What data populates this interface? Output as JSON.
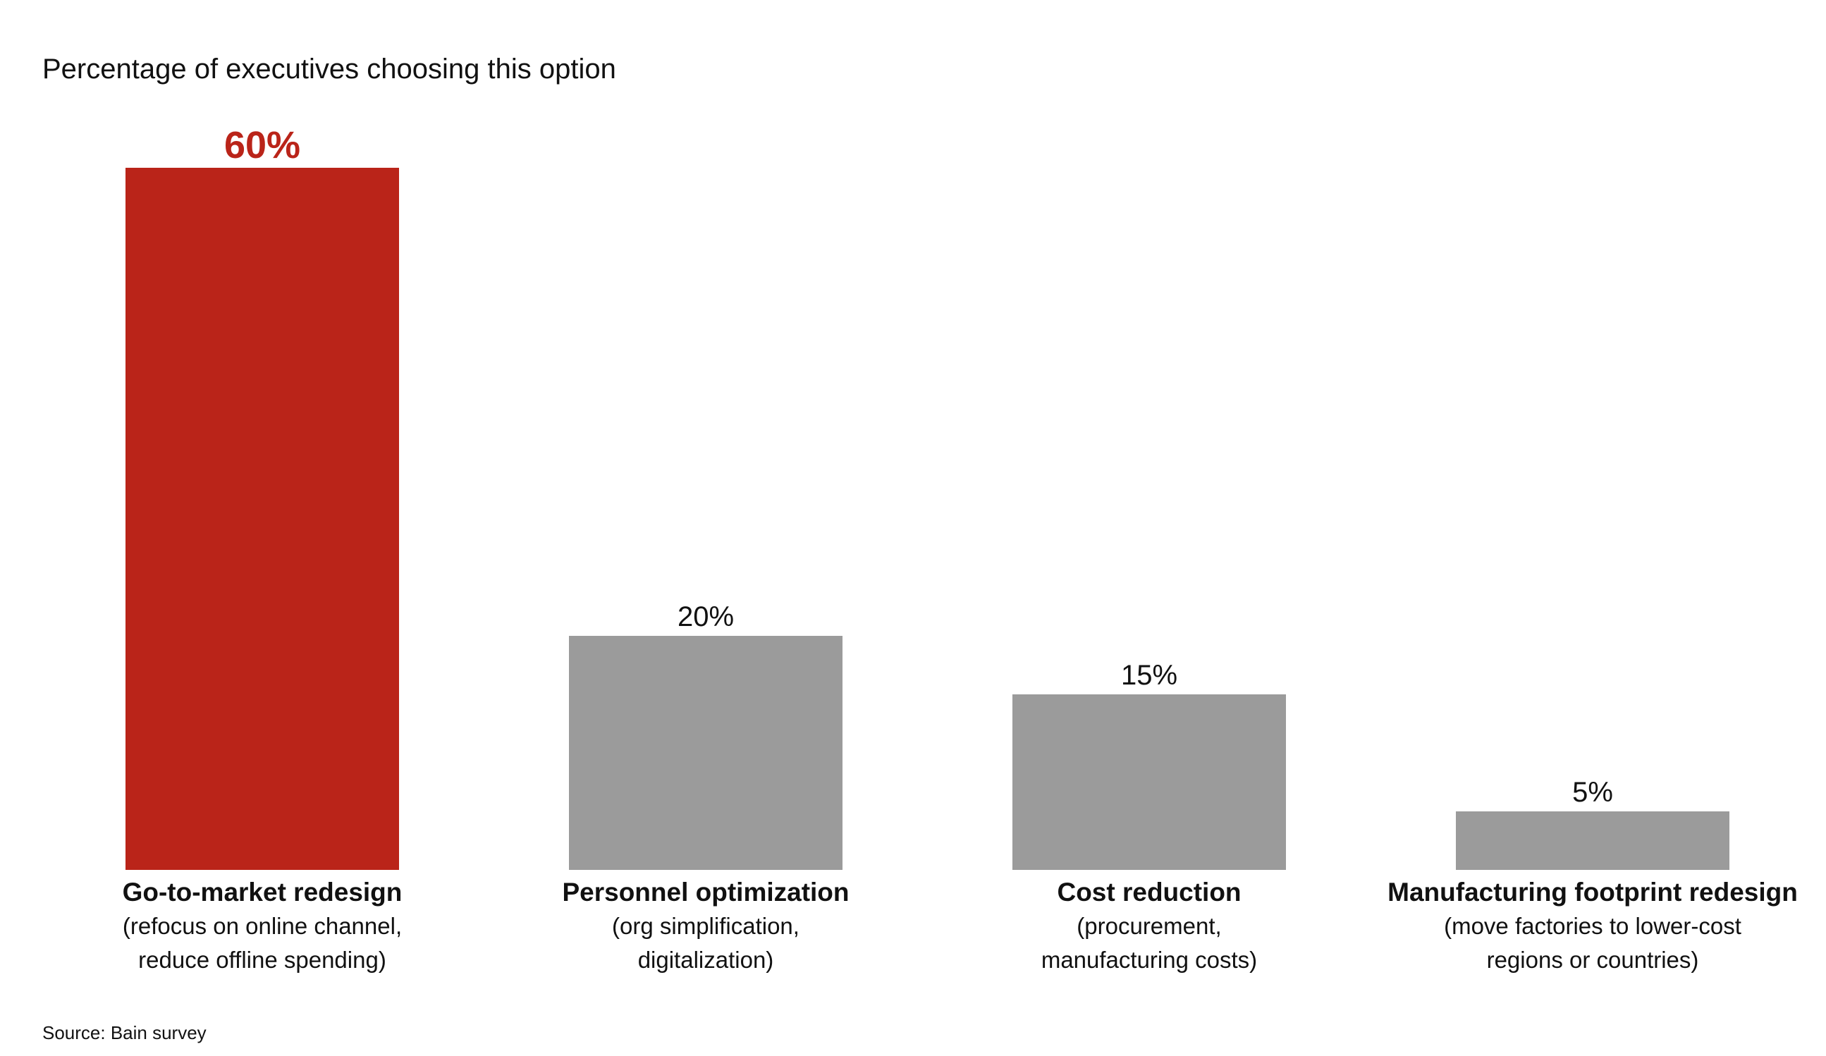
{
  "chart_data": {
    "type": "bar",
    "title": "Percentage of executives choosing this option",
    "categories": [
      {
        "label": "Go-to-market redesign",
        "sublabel_lines": [
          "(refocus on online channel,",
          "reduce offline spending)"
        ]
      },
      {
        "label": "Personnel optimization",
        "sublabel_lines": [
          "(org simplification,",
          "digitalization)"
        ]
      },
      {
        "label": "Cost reduction",
        "sublabel_lines": [
          "(procurement,",
          "manufacturing costs)"
        ]
      },
      {
        "label": "Manufacturing footprint redesign",
        "sublabel_lines": [
          "(move factories to lower-cost",
          "regions or countries)"
        ]
      }
    ],
    "values": [
      60,
      20,
      15,
      5
    ],
    "value_labels": [
      "60%",
      "20%",
      "15%",
      "5%"
    ],
    "unit": "%",
    "ylim": [
      0,
      60
    ],
    "grid": false,
    "colors": {
      "highlight": "#BA2419",
      "default": "#9B9B9B",
      "highlight_label": "#BA2419",
      "default_label": "#111111"
    },
    "highlight_index": 0,
    "source": "Source: Bain survey"
  }
}
